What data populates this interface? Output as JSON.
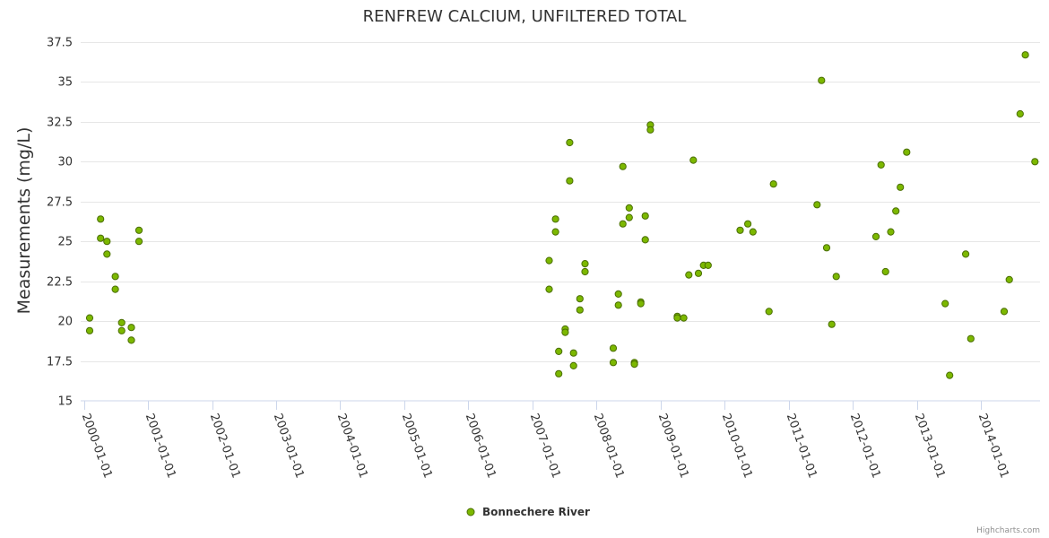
{
  "chart_data": {
    "type": "scatter",
    "title": "RENFREW CALCIUM, UNFILTERED TOTAL",
    "xlabel": "",
    "ylabel": "Measurements (mg/L)",
    "ylim": [
      15,
      37.5
    ],
    "yticks": [
      15,
      17.5,
      20,
      22.5,
      25,
      27.5,
      30,
      32.5,
      35,
      37.5
    ],
    "ytick_labels": [
      "15",
      "17.5",
      "20",
      "22.5",
      "25",
      "27.5",
      "30",
      "32.5",
      "35",
      "37.5"
    ],
    "xlim": [
      1999.95,
      2014.92
    ],
    "xticks": [
      2000,
      2001,
      2002,
      2003,
      2004,
      2005,
      2006,
      2007,
      2008,
      2009,
      2010,
      2011,
      2012,
      2013,
      2014
    ],
    "xtick_labels": [
      "2000-01-01",
      "2001-01-01",
      "2002-01-01",
      "2003-01-01",
      "2004-01-01",
      "2005-01-01",
      "2006-01-01",
      "2007-01-01",
      "2008-01-01",
      "2009-01-01",
      "2010-01-01",
      "2011-01-01",
      "2012-01-01",
      "2013-01-01",
      "2014-01-01"
    ],
    "grid": true,
    "legend_position": "bottom-center",
    "series": [
      {
        "name": "Bonnechere River",
        "color": "#7cb800",
        "points": [
          [
            2000.09,
            20.2
          ],
          [
            2000.09,
            19.4
          ],
          [
            2000.26,
            26.4
          ],
          [
            2000.26,
            25.2
          ],
          [
            2000.36,
            25.0
          ],
          [
            2000.36,
            24.2
          ],
          [
            2000.49,
            22.8
          ],
          [
            2000.49,
            22.0
          ],
          [
            2000.59,
            19.9
          ],
          [
            2000.59,
            19.4
          ],
          [
            2000.74,
            19.6
          ],
          [
            2000.74,
            18.8
          ],
          [
            2000.86,
            25.7
          ],
          [
            2000.86,
            25.0
          ],
          [
            2007.26,
            23.8
          ],
          [
            2007.26,
            22.0
          ],
          [
            2007.36,
            26.4
          ],
          [
            2007.36,
            25.6
          ],
          [
            2007.41,
            18.1
          ],
          [
            2007.41,
            16.7
          ],
          [
            2007.51,
            19.5
          ],
          [
            2007.51,
            19.3
          ],
          [
            2007.58,
            31.2
          ],
          [
            2007.58,
            28.8
          ],
          [
            2007.64,
            18.0
          ],
          [
            2007.64,
            17.2
          ],
          [
            2007.74,
            21.4
          ],
          [
            2007.74,
            20.7
          ],
          [
            2007.82,
            23.6
          ],
          [
            2007.82,
            23.1
          ],
          [
            2008.26,
            18.3
          ],
          [
            2008.26,
            17.4
          ],
          [
            2008.34,
            21.7
          ],
          [
            2008.34,
            21.0
          ],
          [
            2008.41,
            29.7
          ],
          [
            2008.41,
            26.1
          ],
          [
            2008.51,
            27.1
          ],
          [
            2008.51,
            26.5
          ],
          [
            2008.59,
            17.4
          ],
          [
            2008.59,
            17.3
          ],
          [
            2008.69,
            21.2
          ],
          [
            2008.69,
            21.1
          ],
          [
            2008.76,
            26.6
          ],
          [
            2008.76,
            25.1
          ],
          [
            2008.84,
            32.3
          ],
          [
            2008.84,
            32.0
          ],
          [
            2009.26,
            20.3
          ],
          [
            2009.26,
            20.2
          ],
          [
            2009.36,
            20.2
          ],
          [
            2009.44,
            22.9
          ],
          [
            2009.51,
            30.1
          ],
          [
            2009.59,
            23.0
          ],
          [
            2009.67,
            23.5
          ],
          [
            2009.74,
            23.5
          ],
          [
            2010.24,
            25.7
          ],
          [
            2010.36,
            26.1
          ],
          [
            2010.44,
            25.6
          ],
          [
            2010.69,
            20.6
          ],
          [
            2010.76,
            28.6
          ],
          [
            2011.44,
            27.3
          ],
          [
            2011.51,
            35.1
          ],
          [
            2011.59,
            24.6
          ],
          [
            2011.67,
            19.8
          ],
          [
            2011.74,
            22.8
          ],
          [
            2012.36,
            25.3
          ],
          [
            2012.44,
            29.8
          ],
          [
            2012.51,
            23.1
          ],
          [
            2012.59,
            25.6
          ],
          [
            2012.67,
            26.9
          ],
          [
            2012.74,
            28.4
          ],
          [
            2012.84,
            30.6
          ],
          [
            2013.44,
            21.1
          ],
          [
            2013.51,
            16.6
          ],
          [
            2013.76,
            24.2
          ],
          [
            2013.84,
            18.9
          ],
          [
            2014.36,
            20.6
          ],
          [
            2014.44,
            22.6
          ],
          [
            2014.61,
            33.0
          ],
          [
            2014.69,
            36.7
          ],
          [
            2014.84,
            30.0
          ]
        ]
      }
    ]
  },
  "credits": "Highcharts.com"
}
